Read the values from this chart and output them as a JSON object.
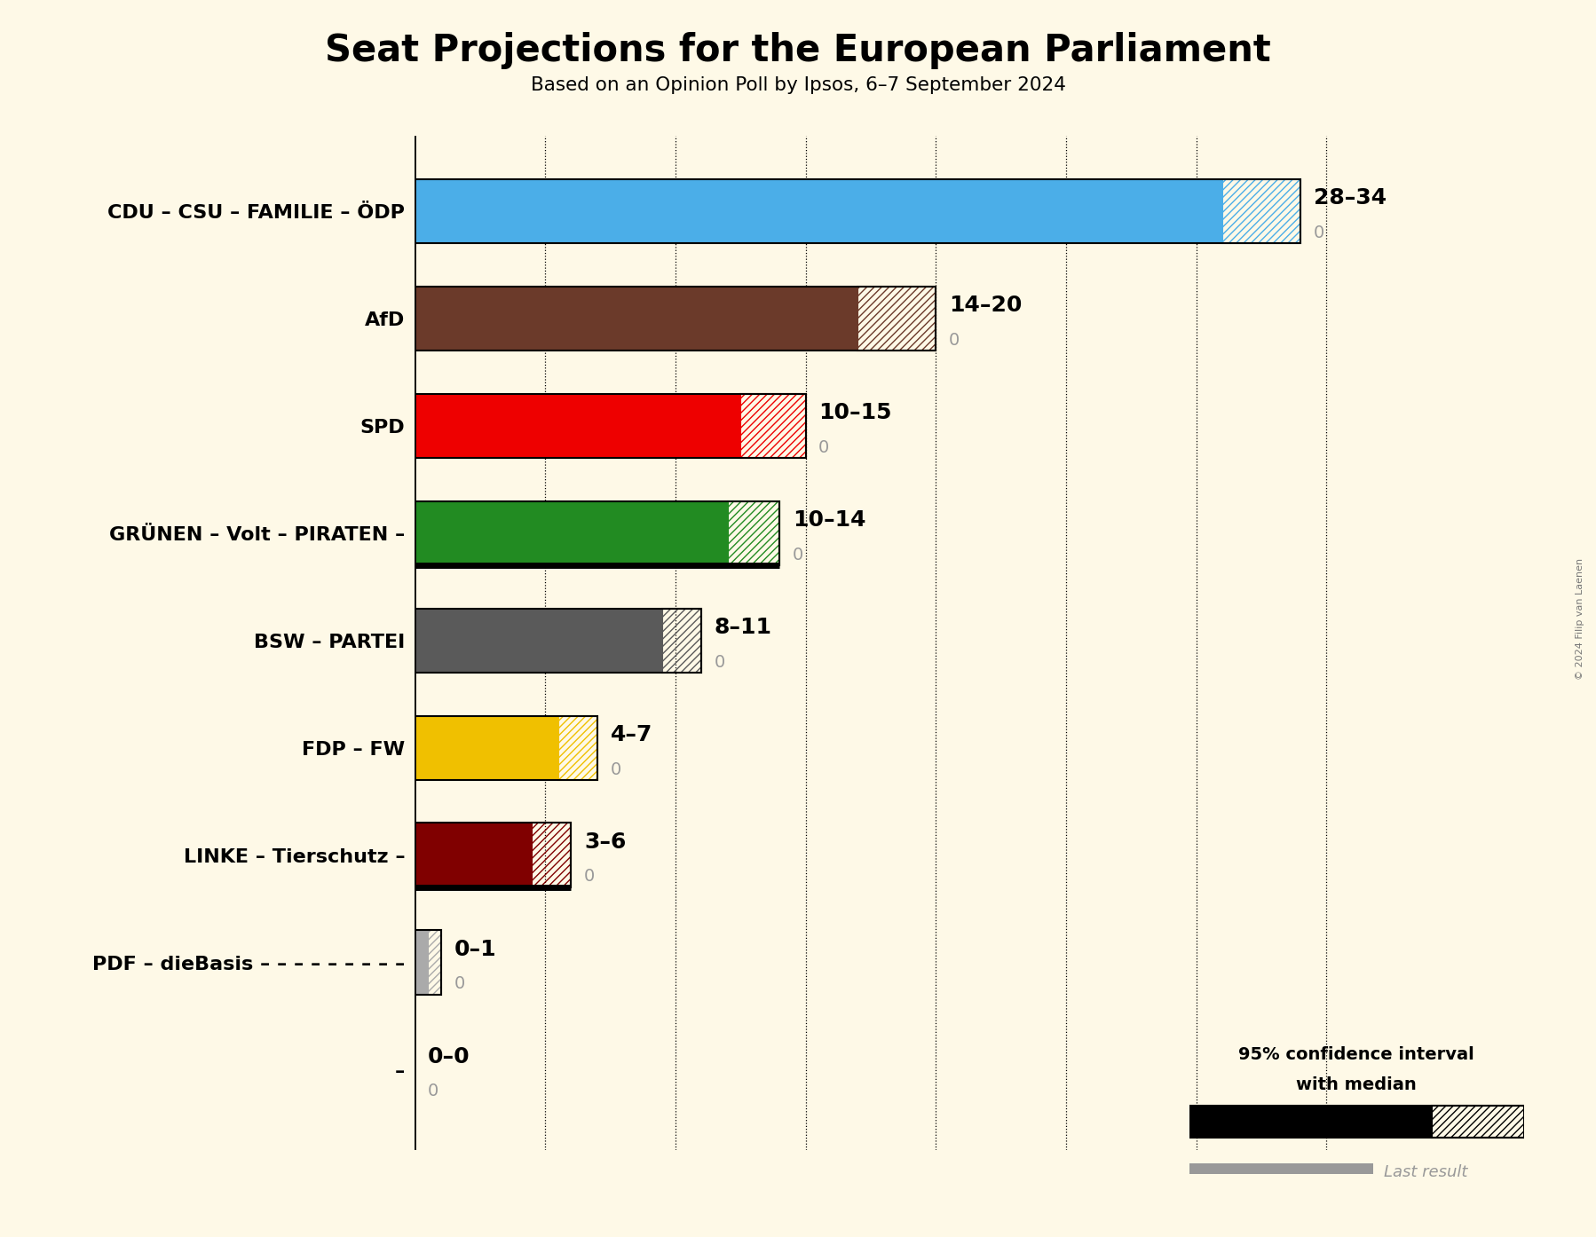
{
  "title": "Seat Projections for the European Parliament",
  "subtitle": "Based on an Opinion Poll by Ipsos, 6–7 September 2024",
  "copyright": "© 2024 Filip van Laenen",
  "background_color": "#fef9e7",
  "parties": [
    "CDU – CSU – FAMILIE – ÖDP",
    "AfD",
    "SPD",
    "GRÜNEN – Volt – PIRATEN –",
    "BSW – PARTEI",
    "FDP – FW",
    "LINKE – Tierschutz –",
    "PDF – dieBasis – – – – – – – – –",
    "–"
  ],
  "median_values": [
    28,
    14,
    10,
    10,
    8,
    4,
    3,
    0,
    0
  ],
  "high_values": [
    34,
    20,
    15,
    14,
    11,
    7,
    6,
    1,
    0
  ],
  "range_labels": [
    "28–34",
    "14–20",
    "10–15",
    "10–14",
    "8–11",
    "4–7",
    "3–6",
    "0–1",
    "0–0"
  ],
  "colors": [
    "#4baee8",
    "#6b3a2a",
    "#ee0000",
    "#228b22",
    "#5a5a5a",
    "#f0c000",
    "#800000",
    "#aaaaaa",
    "#222222"
  ],
  "black_base": [
    false,
    false,
    false,
    true,
    false,
    false,
    true,
    false,
    false
  ],
  "xlim_max": 38,
  "bar_height": 0.6,
  "grid_x": [
    0,
    5,
    10,
    15,
    20,
    25,
    30,
    35
  ],
  "legend_text1": "95% confidence interval",
  "legend_text2": "with median",
  "legend_text3": "Last result"
}
